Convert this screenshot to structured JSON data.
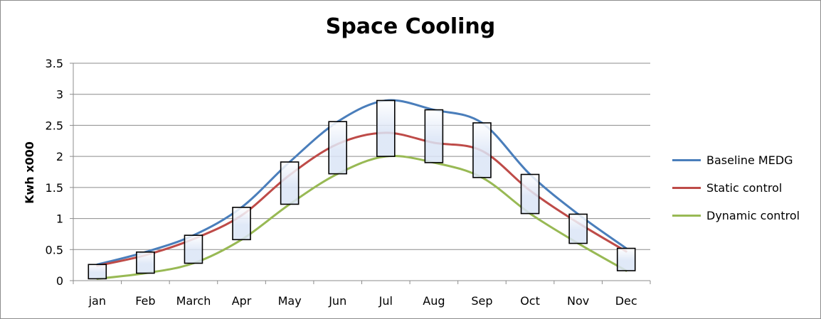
{
  "chart_data": {
    "type": "line",
    "title": "Space Cooling",
    "xlabel": "",
    "ylabel": "Kwh x000",
    "categories": [
      "jan",
      "Feb",
      "March",
      "Apr",
      "May",
      "Jun",
      "Jul",
      "Aug",
      "Sep",
      "Oct",
      "Nov",
      "Dec"
    ],
    "ylim": [
      0,
      3.5
    ],
    "yticks": [
      "0",
      "0.5",
      "1",
      "1.5",
      "2",
      "2.5",
      "3",
      "3.5"
    ],
    "grid": true,
    "legend_position": "right",
    "series": [
      {
        "name": "Baseline MEDG",
        "color": "#4a7ebb",
        "values": [
          0.26,
          0.46,
          0.73,
          1.18,
          1.91,
          2.56,
          2.9,
          2.75,
          2.54,
          1.71,
          1.07,
          0.52
        ]
      },
      {
        "name": "Static control",
        "color": "#be4b48",
        "values": [
          0.24,
          0.41,
          0.67,
          1.05,
          1.7,
          2.2,
          2.38,
          2.22,
          2.09,
          1.45,
          0.93,
          0.47
        ]
      },
      {
        "name": "Dynamic control",
        "color": "#98b954",
        "values": [
          0.03,
          0.12,
          0.28,
          0.66,
          1.23,
          1.72,
          2.0,
          1.9,
          1.66,
          1.08,
          0.6,
          0.16
        ]
      }
    ],
    "range_boxes": {
      "high": [
        0.26,
        0.46,
        0.73,
        1.18,
        1.91,
        2.56,
        2.9,
        2.75,
        2.54,
        1.71,
        1.07,
        0.52
      ],
      "low": [
        0.03,
        0.12,
        0.28,
        0.66,
        1.23,
        1.72,
        2.0,
        1.9,
        1.66,
        1.08,
        0.6,
        0.16
      ]
    },
    "box_fill": "#dbe5f6"
  }
}
